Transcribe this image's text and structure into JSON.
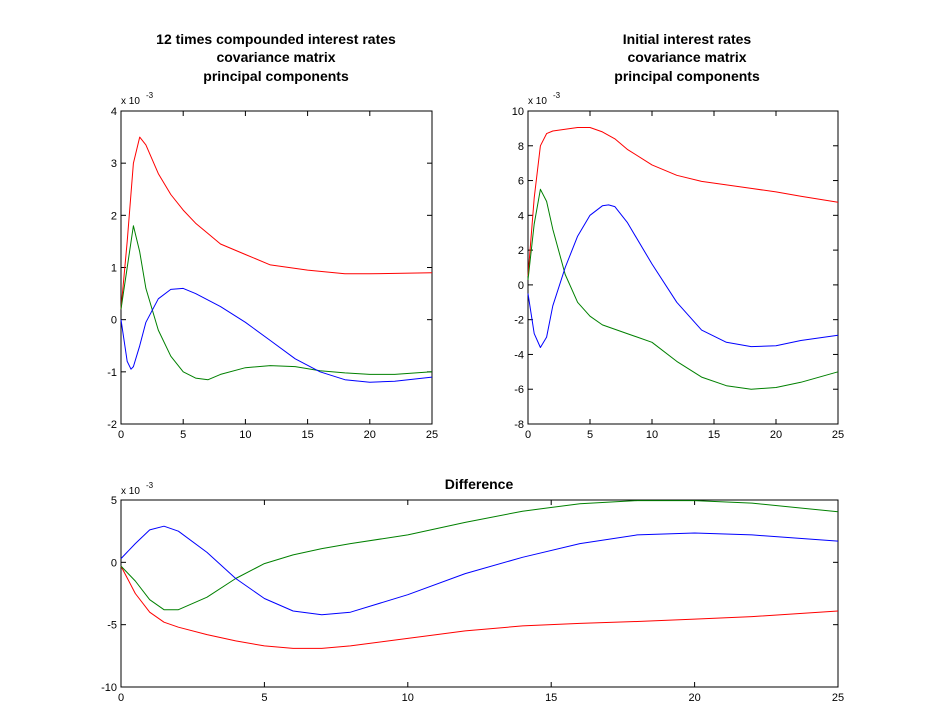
{
  "chart_data": [
    {
      "type": "line",
      "title_lines": [
        "12 times compounded interest rates",
        "covariance matrix",
        "principal components"
      ],
      "xlim": [
        0,
        25
      ],
      "ylim": [
        -2,
        4
      ],
      "xticks": [
        0,
        5,
        10,
        15,
        20,
        25
      ],
      "yticks": [
        -2,
        -1,
        0,
        1,
        2,
        3,
        4
      ],
      "y_multiplier": "x 10",
      "y_multiplier_exp": "-3",
      "grid": false,
      "series": [
        {
          "color": "#ff0000",
          "points": [
            [
              0,
              0.2
            ],
            [
              0.5,
              1.5
            ],
            [
              1,
              3.0
            ],
            [
              1.5,
              3.5
            ],
            [
              2,
              3.35
            ],
            [
              3,
              2.8
            ],
            [
              4,
              2.4
            ],
            [
              5,
              2.1
            ],
            [
              6,
              1.85
            ],
            [
              7,
              1.65
            ],
            [
              8,
              1.45
            ],
            [
              10,
              1.25
            ],
            [
              12,
              1.05
            ],
            [
              15,
              0.95
            ],
            [
              18,
              0.88
            ],
            [
              20,
              0.88
            ],
            [
              25,
              0.9
            ]
          ]
        },
        {
          "color": "#008000",
          "points": [
            [
              0,
              0.2
            ],
            [
              0.5,
              1.0
            ],
            [
              1,
              1.8
            ],
            [
              1.5,
              1.3
            ],
            [
              2,
              0.6
            ],
            [
              3,
              -0.2
            ],
            [
              4,
              -0.7
            ],
            [
              5,
              -1.0
            ],
            [
              6,
              -1.12
            ],
            [
              7,
              -1.15
            ],
            [
              8,
              -1.05
            ],
            [
              10,
              -0.92
            ],
            [
              12,
              -0.88
            ],
            [
              14,
              -0.9
            ],
            [
              16,
              -0.98
            ],
            [
              18,
              -1.02
            ],
            [
              20,
              -1.05
            ],
            [
              22,
              -1.05
            ],
            [
              25,
              -1.0
            ]
          ]
        },
        {
          "color": "#0000ff",
          "points": [
            [
              0,
              0.0
            ],
            [
              0.5,
              -0.8
            ],
            [
              0.8,
              -0.95
            ],
            [
              1,
              -0.9
            ],
            [
              1.5,
              -0.5
            ],
            [
              2,
              -0.05
            ],
            [
              3,
              0.4
            ],
            [
              4,
              0.58
            ],
            [
              5,
              0.6
            ],
            [
              6,
              0.5
            ],
            [
              8,
              0.25
            ],
            [
              10,
              -0.05
            ],
            [
              12,
              -0.4
            ],
            [
              14,
              -0.75
            ],
            [
              16,
              -1.0
            ],
            [
              18,
              -1.15
            ],
            [
              20,
              -1.2
            ],
            [
              22,
              -1.18
            ],
            [
              25,
              -1.1
            ]
          ]
        }
      ]
    },
    {
      "type": "line",
      "title_lines": [
        "Initial interest rates",
        "covariance matrix",
        "principal components"
      ],
      "xlim": [
        0,
        25
      ],
      "ylim": [
        -8,
        10
      ],
      "xticks": [
        0,
        5,
        10,
        15,
        20,
        25
      ],
      "yticks": [
        -8,
        -6,
        -4,
        -2,
        0,
        2,
        4,
        6,
        8,
        10
      ],
      "y_multiplier": "x 10",
      "y_multiplier_exp": "-3",
      "grid": false,
      "series": [
        {
          "color": "#ff0000",
          "points": [
            [
              0,
              0.5
            ],
            [
              0.5,
              5.0
            ],
            [
              1,
              8.0
            ],
            [
              1.5,
              8.7
            ],
            [
              2,
              8.85
            ],
            [
              3,
              8.95
            ],
            [
              4,
              9.05
            ],
            [
              5,
              9.05
            ],
            [
              6,
              8.8
            ],
            [
              7,
              8.4
            ],
            [
              8,
              7.8
            ],
            [
              10,
              6.9
            ],
            [
              12,
              6.3
            ],
            [
              14,
              5.95
            ],
            [
              16,
              5.75
            ],
            [
              18,
              5.55
            ],
            [
              20,
              5.35
            ],
            [
              22,
              5.1
            ],
            [
              25,
              4.75
            ]
          ]
        },
        {
          "color": "#008000",
          "points": [
            [
              0,
              0.3
            ],
            [
              0.5,
              3.5
            ],
            [
              1,
              5.5
            ],
            [
              1.5,
              4.8
            ],
            [
              2,
              3.2
            ],
            [
              3,
              0.6
            ],
            [
              4,
              -1.0
            ],
            [
              5,
              -1.8
            ],
            [
              6,
              -2.3
            ],
            [
              8,
              -2.8
            ],
            [
              10,
              -3.3
            ],
            [
              12,
              -4.4
            ],
            [
              14,
              -5.3
            ],
            [
              16,
              -5.8
            ],
            [
              18,
              -6.0
            ],
            [
              20,
              -5.9
            ],
            [
              22,
              -5.6
            ],
            [
              25,
              -5.0
            ]
          ]
        },
        {
          "color": "#0000ff",
          "points": [
            [
              0,
              -0.5
            ],
            [
              0.5,
              -2.8
            ],
            [
              1,
              -3.6
            ],
            [
              1.5,
              -3.0
            ],
            [
              2,
              -1.2
            ],
            [
              3,
              1.0
            ],
            [
              4,
              2.8
            ],
            [
              5,
              4.0
            ],
            [
              6,
              4.55
            ],
            [
              6.5,
              4.6
            ],
            [
              7,
              4.5
            ],
            [
              8,
              3.6
            ],
            [
              10,
              1.2
            ],
            [
              12,
              -1.0
            ],
            [
              14,
              -2.6
            ],
            [
              16,
              -3.3
            ],
            [
              18,
              -3.55
            ],
            [
              20,
              -3.5
            ],
            [
              22,
              -3.2
            ],
            [
              25,
              -2.9
            ]
          ]
        }
      ]
    },
    {
      "type": "line",
      "title": "Difference",
      "xlim": [
        0,
        25
      ],
      "ylim": [
        -10,
        5
      ],
      "xticks": [
        0,
        5,
        10,
        15,
        20,
        25
      ],
      "yticks": [
        -10,
        -5,
        0,
        5
      ],
      "y_multiplier": "x 10",
      "y_multiplier_exp": "-3",
      "grid": false,
      "series": [
        {
          "color": "#ff0000",
          "points": [
            [
              0,
              -0.3
            ],
            [
              0.5,
              -2.5
            ],
            [
              1,
              -4.0
            ],
            [
              1.5,
              -4.8
            ],
            [
              2,
              -5.2
            ],
            [
              3,
              -5.8
            ],
            [
              4,
              -6.3
            ],
            [
              5,
              -6.7
            ],
            [
              6,
              -6.9
            ],
            [
              7,
              -6.9
            ],
            [
              8,
              -6.7
            ],
            [
              10,
              -6.1
            ],
            [
              12,
              -5.5
            ],
            [
              14,
              -5.1
            ],
            [
              16,
              -4.9
            ],
            [
              18,
              -4.75
            ],
            [
              20,
              -4.55
            ],
            [
              22,
              -4.35
            ],
            [
              25,
              -3.9
            ]
          ]
        },
        {
          "color": "#008000",
          "points": [
            [
              0,
              -0.3
            ],
            [
              0.5,
              -1.5
            ],
            [
              1,
              -3.0
            ],
            [
              1.5,
              -3.8
            ],
            [
              2,
              -3.8
            ],
            [
              3,
              -2.8
            ],
            [
              4,
              -1.3
            ],
            [
              5,
              -0.1
            ],
            [
              6,
              0.6
            ],
            [
              7,
              1.1
            ],
            [
              8,
              1.5
            ],
            [
              10,
              2.2
            ],
            [
              12,
              3.2
            ],
            [
              14,
              4.1
            ],
            [
              16,
              4.7
            ],
            [
              18,
              4.95
            ],
            [
              20,
              4.95
            ],
            [
              22,
              4.75
            ],
            [
              25,
              4.05
            ]
          ]
        },
        {
          "color": "#0000ff",
          "points": [
            [
              0,
              0.3
            ],
            [
              0.5,
              1.5
            ],
            [
              1,
              2.6
            ],
            [
              1.5,
              2.9
            ],
            [
              2,
              2.5
            ],
            [
              3,
              0.8
            ],
            [
              4,
              -1.3
            ],
            [
              5,
              -2.9
            ],
            [
              6,
              -3.9
            ],
            [
              7,
              -4.2
            ],
            [
              8,
              -4.0
            ],
            [
              10,
              -2.6
            ],
            [
              12,
              -0.9
            ],
            [
              14,
              0.4
            ],
            [
              16,
              1.5
            ],
            [
              18,
              2.2
            ],
            [
              20,
              2.35
            ],
            [
              22,
              2.2
            ],
            [
              25,
              1.7
            ]
          ]
        }
      ]
    }
  ]
}
